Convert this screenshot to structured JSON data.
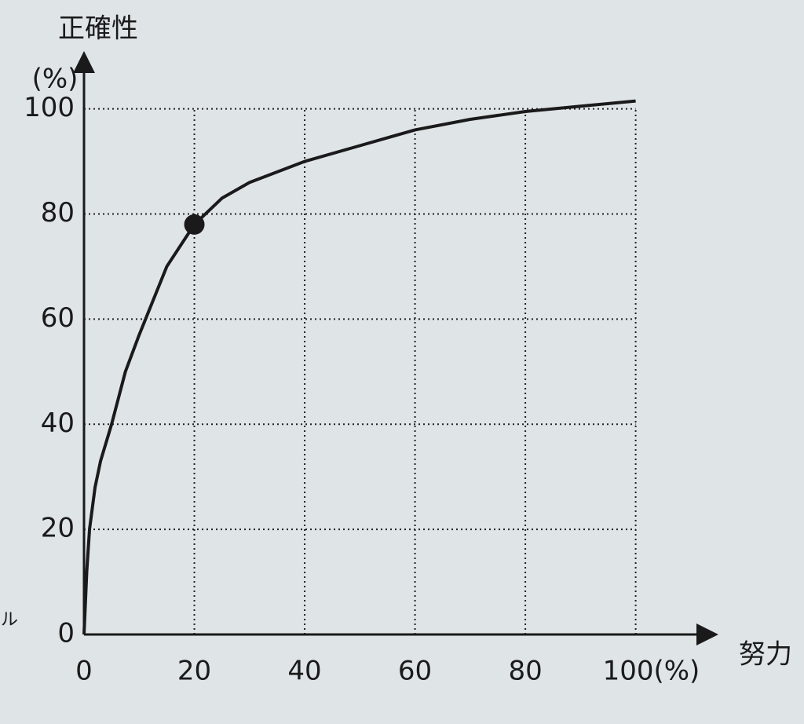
{
  "chart_data": {
    "type": "line",
    "y_label": "正確性",
    "y_unit": "(%)",
    "x_label": "努力",
    "side_text": "ル",
    "x": [
      0,
      0.5,
      1,
      2,
      3,
      5,
      7.5,
      10,
      15,
      20,
      25,
      30,
      40,
      50,
      60,
      70,
      80,
      90,
      100
    ],
    "series": [
      {
        "color": "#1a1a1a",
        "values": [
          0,
          12,
          20,
          28,
          33,
          40,
          50,
          57,
          70,
          78,
          83,
          86,
          90,
          93,
          96,
          98,
          99.5,
          100.5,
          101.5
        ]
      }
    ],
    "highlight": {
      "x": 20,
      "y": 78,
      "color": "#1a1a1a"
    },
    "xlim": [
      0,
      115
    ],
    "ylim": [
      0,
      111
    ],
    "xticks": [
      0,
      20,
      40,
      60,
      80,
      {
        "value": 100,
        "label": "100(%)"
      }
    ],
    "yticks": [
      0,
      20,
      40,
      60,
      80,
      100
    ],
    "grid": true
  }
}
